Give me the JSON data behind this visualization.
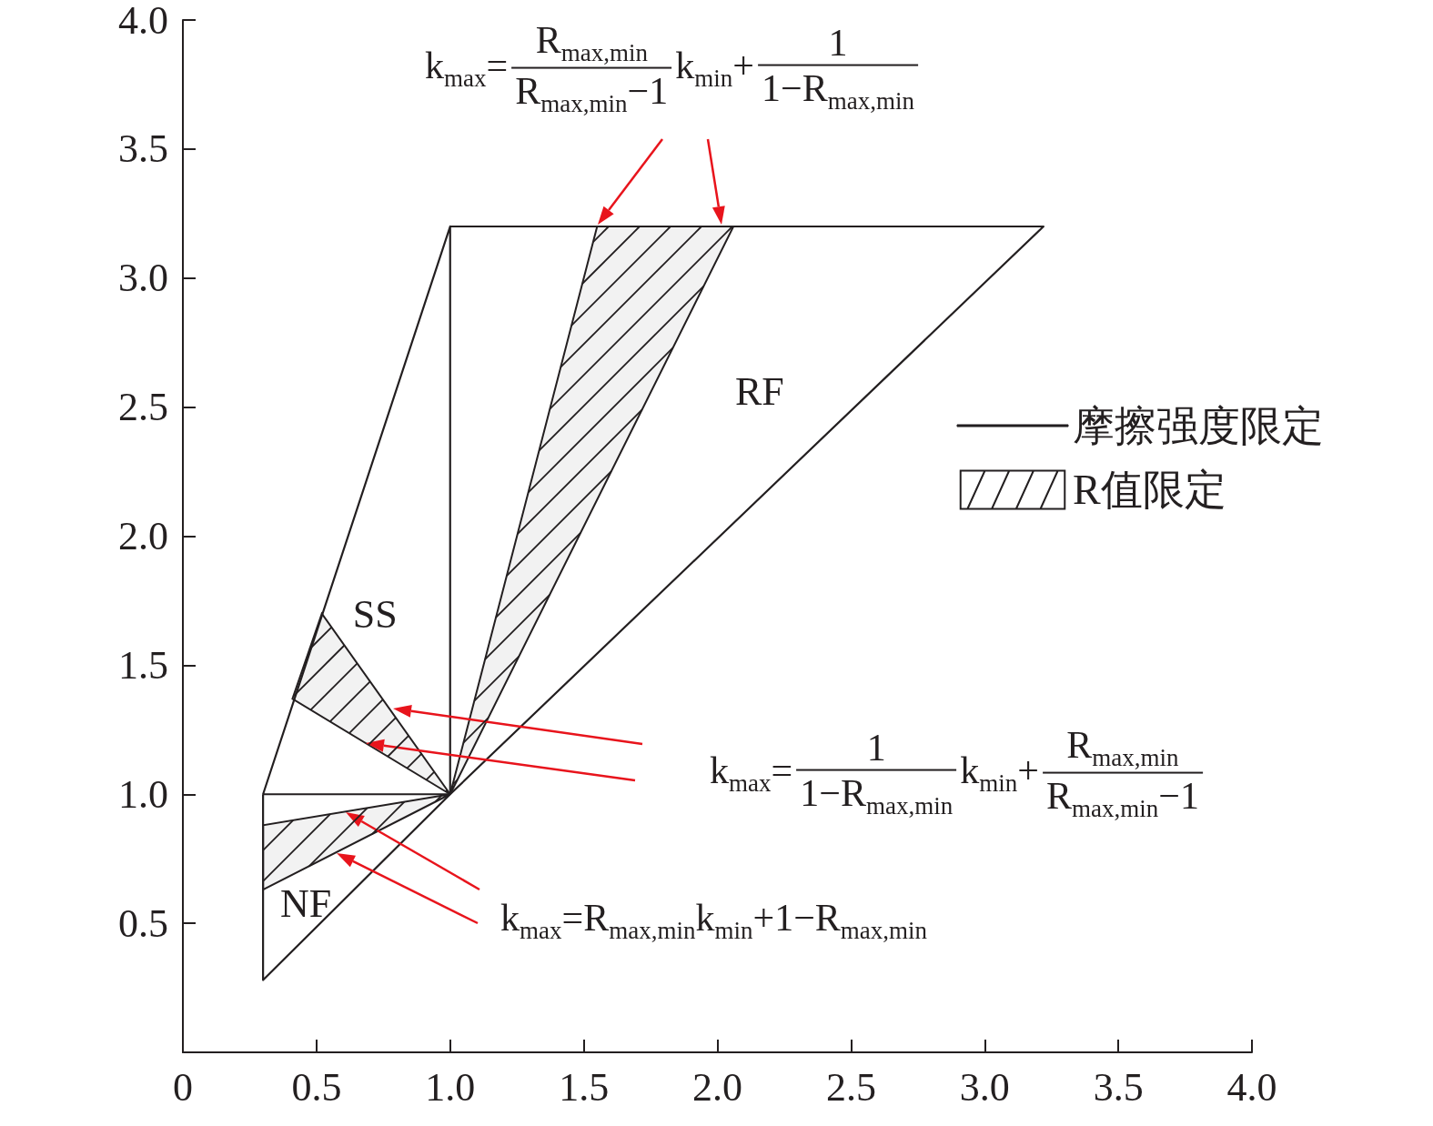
{
  "chart_data": {
    "type": "line",
    "xlim": [
      0,
      4
    ],
    "ylim": [
      0,
      4
    ],
    "xticks": [
      0,
      0.5,
      {
        "value": 1,
        "label": "1.0"
      },
      1.5,
      {
        "value": 2,
        "label": "2.0"
      },
      2.5,
      {
        "value": 3,
        "label": "3.0"
      },
      3.5,
      {
        "value": 4,
        "label": "4.0"
      }
    ],
    "yticks": [
      0.5,
      {
        "value": 1,
        "label": "1.0"
      },
      1.5,
      {
        "value": 2,
        "label": "2.0"
      },
      2.5,
      {
        "value": 3,
        "label": "3.0"
      },
      3.5,
      {
        "value": 4,
        "label": "4.0"
      }
    ],
    "grid": false,
    "legend": "right",
    "marker": "none",
    "line_style": "solid",
    "series": [
      {
        "name": "摩擦强度限定",
        "color": "#231f20",
        "x": [
          0.3,
          1,
          1,
          0.3,
          0.3,
          1,
          3.22,
          1
        ],
        "values": [
          1,
          3.2,
          1,
          1,
          0.28,
          1,
          3.2,
          3.2
        ]
      },
      {
        "name": "R值限定",
        "type": "area",
        "color": "#231f20",
        "x": [
          0.52,
          0.41,
          1,
          null,
          1.55,
          2.06,
          1,
          null,
          0.3,
          0.3,
          1
        ],
        "values": [
          1.7,
          1.37,
          1,
          null,
          3.2,
          3.2,
          1,
          null,
          0.88,
          0.63,
          1
        ]
      }
    ],
    "annotations": [
      "k$_{max}$=",
      "R$_{max,min}$",
      "R$_{max,min}$−1",
      "k$_{min}$+",
      "1",
      "1−R$_{max,min}$",
      "k$_{max}$=",
      "1",
      "1−R$_{max,min}$",
      "k$_{min}$+",
      "R$_{max,min}$",
      "R$_{max,min}$−1",
      "k$_{max}$=R$_{max,min}$k$_{min}$+1−R$_{max,min}$",
      {
        "text": "SS",
        "x": 0.52,
        "y": 1.7
      },
      "RF",
      "NF"
    ]
  }
}
